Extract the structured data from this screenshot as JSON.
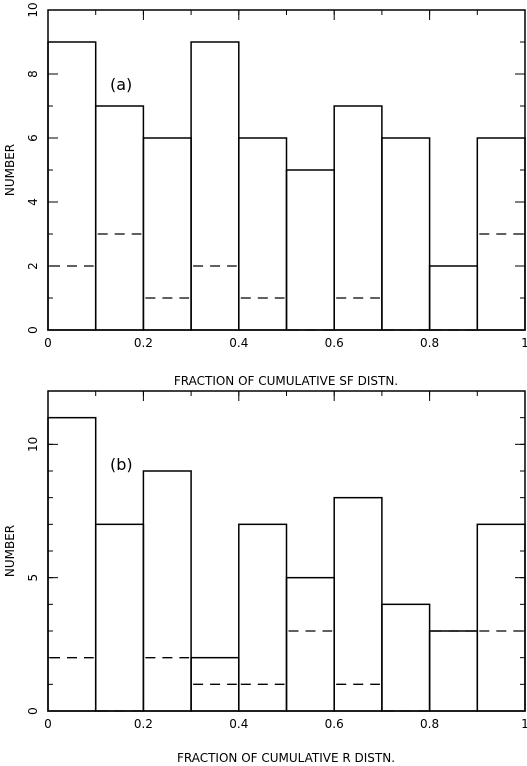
{
  "chart_data": [
    {
      "type": "bar",
      "panel_label": "(a)",
      "xlabel": "FRACTION OF CUMULATIVE SF DISTN.",
      "ylabel": "NUMBER",
      "xlim": [
        0,
        1
      ],
      "ylim": [
        0,
        10
      ],
      "x_ticks": [
        0,
        0.2,
        0.4,
        0.6,
        0.8,
        1
      ],
      "x_tick_labels": [
        "0",
        "0.2",
        "0.4",
        "0.6",
        "0.8",
        "1"
      ],
      "y_ticks": [
        0,
        2,
        4,
        6,
        8,
        10
      ],
      "y_tick_labels": [
        "0",
        "2",
        "4",
        "6",
        "8",
        "10"
      ],
      "bin_edges": [
        0,
        0.1,
        0.2,
        0.3,
        0.4,
        0.5,
        0.6,
        0.7,
        0.8,
        0.9,
        1.0
      ],
      "series": [
        {
          "style": "solid",
          "values": [
            9,
            7,
            6,
            9,
            6,
            5,
            7,
            6,
            2,
            6
          ]
        },
        {
          "style": "dashed",
          "values": [
            2,
            3,
            1,
            2,
            1,
            0,
            1,
            0,
            0,
            3
          ]
        }
      ],
      "grid": false
    },
    {
      "type": "bar",
      "panel_label": "(b)",
      "xlabel": "FRACTION OF CUMULATIVE R DISTN.",
      "ylabel": "NUMBER",
      "xlim": [
        0,
        1
      ],
      "ylim": [
        0,
        12
      ],
      "x_ticks": [
        0,
        0.2,
        0.4,
        0.6,
        0.8,
        1
      ],
      "x_tick_labels": [
        "0",
        "0.2",
        "0.4",
        "0.6",
        "0.8",
        "1"
      ],
      "y_ticks": [
        0,
        5,
        10
      ],
      "y_tick_labels": [
        "0",
        "5",
        "10"
      ],
      "bin_edges": [
        0,
        0.1,
        0.2,
        0.3,
        0.4,
        0.5,
        0.6,
        0.7,
        0.8,
        0.9,
        1.0
      ],
      "series": [
        {
          "style": "solid",
          "values": [
            11,
            7,
            9,
            2,
            7,
            5,
            8,
            4,
            3,
            7
          ]
        },
        {
          "style": "dashed",
          "values": [
            2,
            0,
            2,
            1,
            1,
            3,
            1,
            0,
            3,
            3
          ]
        }
      ],
      "grid": false
    }
  ]
}
